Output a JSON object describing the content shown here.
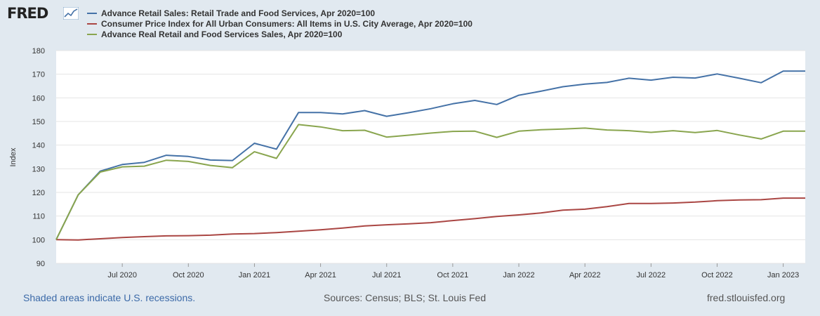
{
  "logo": {
    "text": "FRED"
  },
  "chart_data": {
    "type": "line",
    "ylabel": "Index",
    "ylim": [
      90,
      180
    ],
    "yticks": [
      90,
      100,
      110,
      120,
      130,
      140,
      150,
      160,
      170,
      180
    ],
    "x_tick_labels": [
      "Jul 2020",
      "Oct 2020",
      "Jan 2021",
      "Apr 2021",
      "Jul 2021",
      "Oct 2021",
      "Jan 2022",
      "Apr 2022",
      "Jul 2022",
      "Oct 2022",
      "Jan 2023"
    ],
    "x_tick_index": [
      3,
      6,
      9,
      12,
      15,
      18,
      21,
      24,
      27,
      30,
      33
    ],
    "x_months": [
      "2020-04",
      "2020-05",
      "2020-06",
      "2020-07",
      "2020-08",
      "2020-09",
      "2020-10",
      "2020-11",
      "2020-12",
      "2021-01",
      "2021-02",
      "2021-03",
      "2021-04",
      "2021-05",
      "2021-06",
      "2021-07",
      "2021-08",
      "2021-09",
      "2021-10",
      "2021-11",
      "2021-12",
      "2022-01",
      "2022-02",
      "2022-03",
      "2022-04",
      "2022-05",
      "2022-06",
      "2022-07",
      "2022-08",
      "2022-09",
      "2022-10",
      "2022-11",
      "2022-12",
      "2023-01",
      "2023-02"
    ],
    "series": [
      {
        "name": "Advance Retail Sales: Retail Trade and Food Services, Apr 2020=100",
        "color": "#4572a7",
        "values": [
          100,
          119,
          129,
          131.8,
          132.7,
          135.7,
          135.2,
          133.7,
          133.5,
          140.8,
          138.3,
          153.8,
          153.8,
          153.2,
          154.6,
          152.2,
          153.7,
          155.4,
          157.5,
          158.9,
          157.2,
          161.1,
          162.8,
          164.7,
          165.8,
          166.5,
          168.3,
          167.5,
          168.7,
          168.4,
          170.1,
          168.3,
          166.4,
          171.3,
          171.3
        ]
      },
      {
        "name": "Consumer Price Index for All Urban Consumers: All Items in U.S. City Average, Apr 2020=100",
        "color": "#aa4643",
        "values": [
          100,
          99.9,
          100.4,
          100.9,
          101.3,
          101.6,
          101.7,
          101.9,
          102.4,
          102.6,
          103.0,
          103.6,
          104.2,
          104.9,
          105.8,
          106.3,
          106.7,
          107.2,
          108.1,
          108.9,
          109.8,
          110.5,
          111.3,
          112.5,
          112.9,
          114.0,
          115.3,
          115.3,
          115.5,
          115.9,
          116.5,
          116.8,
          116.9,
          117.6,
          117.6
        ]
      },
      {
        "name": "Advance Real Retail and Food Services Sales, Apr 2020=100",
        "color": "#89a54e",
        "values": [
          100,
          119,
          128.6,
          130.8,
          131.1,
          133.6,
          133.1,
          131.4,
          130.5,
          137.2,
          134.4,
          148.7,
          147.7,
          146.1,
          146.3,
          143.4,
          144.2,
          145.1,
          145.8,
          145.9,
          143.3,
          145.9,
          146.5,
          146.8,
          147.2,
          146.4,
          146.1,
          145.4,
          146.1,
          145.3,
          146.2,
          144.3,
          142.6,
          145.9,
          145.9
        ]
      }
    ]
  },
  "footer": {
    "recession_note": "Shaded areas indicate U.S. recessions.",
    "sources": "Sources: Census; BLS; St. Louis Fed",
    "site": "fred.stlouisfed.org"
  }
}
